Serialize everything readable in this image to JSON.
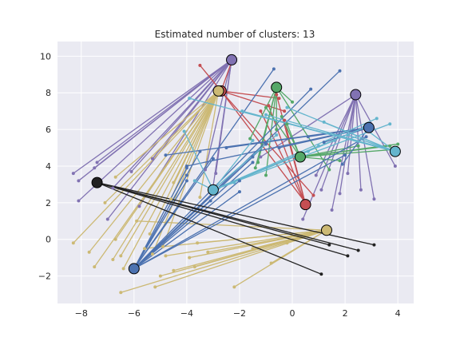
{
  "chart_data": {
    "type": "scatter",
    "title": "Estimated number of clusters: 13",
    "xlabel": "",
    "ylabel": "",
    "xlim": [
      -8.9,
      4.6
    ],
    "ylim": [
      -3.5,
      10.8
    ],
    "x_ticks": [
      -8,
      -6,
      -4,
      -2,
      0,
      2,
      4
    ],
    "y_ticks": [
      -2,
      0,
      2,
      4,
      6,
      8,
      10
    ],
    "x_tick_labels": [
      "−8",
      "−6",
      "−4",
      "−2",
      "0",
      "2",
      "4"
    ],
    "y_tick_labels": [
      "−2",
      "0",
      "2",
      "4",
      "6",
      "8",
      "10"
    ],
    "grid": true,
    "background": "#eaeaf2",
    "clusters": [
      {
        "color": "#8172b2",
        "center": [
          -2.3,
          9.8
        ],
        "points": [
          [
            -8.3,
            3.6
          ],
          [
            -8.1,
            3.2
          ],
          [
            -8.1,
            2.1
          ],
          [
            -7.4,
            4.2
          ],
          [
            -7.5,
            3.9
          ],
          [
            -7.0,
            1.1
          ],
          [
            -6.8,
            2.8
          ],
          [
            -6.1,
            3.7
          ],
          [
            -5.8,
            1.8
          ],
          [
            -3.3,
            3.8
          ],
          [
            -3.0,
            2.9
          ],
          [
            -2.9,
            3.6
          ],
          [
            -5.3,
            4.4
          ]
        ]
      },
      {
        "color": "#8172b2",
        "center": [
          2.4,
          7.9
        ],
        "points": [
          [
            0.4,
            1.1
          ],
          [
            1.1,
            2.7
          ],
          [
            1.5,
            1.6
          ],
          [
            1.8,
            2.5
          ],
          [
            2.1,
            3.6
          ],
          [
            2.6,
            2.7
          ],
          [
            3.1,
            2.2
          ],
          [
            3.9,
            4.0
          ],
          [
            0.9,
            3.5
          ],
          [
            -1.2,
            4.5
          ]
        ]
      },
      {
        "color": "#c44e52",
        "center": [
          -2.7,
          8.1
        ],
        "points": [
          [
            -3.5,
            9.5
          ],
          [
            -2.3,
            9.7
          ],
          [
            -0.3,
            7.0
          ],
          [
            -0.5,
            7.7
          ],
          [
            0.5,
            2.0
          ],
          [
            0.8,
            2.4
          ]
        ]
      },
      {
        "color": "#c44e52",
        "center": [
          0.5,
          1.9
        ],
        "points": [
          [
            -0.9,
            7.3
          ],
          [
            -0.6,
            7.9
          ],
          [
            -1.2,
            7.0
          ],
          [
            -0.3,
            6.5
          ]
        ]
      },
      {
        "color": "#55a868",
        "center": [
          -0.6,
          8.3
        ],
        "points": [
          [
            -1.6,
            5.5
          ],
          [
            -1.3,
            4.2
          ],
          [
            -1.4,
            3.9
          ],
          [
            -1.0,
            3.5
          ],
          [
            0.0,
            7.5
          ],
          [
            -0.6,
            6.0
          ],
          [
            1.4,
            3.8
          ]
        ]
      },
      {
        "color": "#55a868",
        "center": [
          0.3,
          4.5
        ],
        "points": [
          [
            -1.0,
            7.2
          ],
          [
            -0.4,
            6.7
          ],
          [
            -0.2,
            6.3
          ],
          [
            4.0,
            5.2
          ],
          [
            3.8,
            4.9
          ],
          [
            3.7,
            5.1
          ],
          [
            2.5,
            5.1
          ],
          [
            1.8,
            4.3
          ]
        ]
      },
      {
        "color": "#ccb974",
        "center": [
          -2.8,
          8.1
        ],
        "points": [
          [
            -8.3,
            -0.2
          ],
          [
            -7.7,
            -0.7
          ],
          [
            -7.5,
            -1.5
          ],
          [
            -6.7,
            0.0
          ],
          [
            -6.5,
            -0.9
          ],
          [
            -6.8,
            -1.1
          ],
          [
            -6.4,
            -1.6
          ],
          [
            -5.3,
            -0.8
          ],
          [
            -4.9,
            -0.4
          ],
          [
            -7.1,
            2.0
          ],
          [
            -6.7,
            3.4
          ],
          [
            -4.6,
            2.2
          ],
          [
            -4.5,
            3.1
          ],
          [
            -3.5,
            2.3
          ],
          [
            -5.4,
            0.3
          ]
        ]
      },
      {
        "color": "#ccb974",
        "center": [
          1.3,
          0.5
        ],
        "points": [
          [
            -6.5,
            -2.9
          ],
          [
            -5.2,
            -2.6
          ],
          [
            -5.0,
            -2.0
          ],
          [
            -4.5,
            -1.7
          ],
          [
            -3.9,
            -1.0
          ],
          [
            -3.2,
            -0.7
          ],
          [
            -2.2,
            -2.6
          ],
          [
            -3.7,
            -1.5
          ],
          [
            -4.8,
            -0.9
          ],
          [
            -5.6,
            -0.5
          ],
          [
            -3.6,
            -0.2
          ],
          [
            -0.8,
            -1.3
          ],
          [
            -1.5,
            -0.5
          ],
          [
            -0.2,
            -0.2
          ],
          [
            -5.9,
            1.0
          ]
        ]
      },
      {
        "color": "#4c72b0",
        "center": [
          -6.0,
          -1.6
        ],
        "points": [
          [
            -4.0,
            3.5
          ],
          [
            -4.0,
            3.9
          ],
          [
            -4.0,
            3.2
          ],
          [
            -3.5,
            4.8
          ],
          [
            -3.0,
            4.4
          ],
          [
            -2.0,
            3.2
          ],
          [
            -3.1,
            2.1
          ],
          [
            -2.0,
            2.6
          ],
          [
            -1.5,
            4.2
          ],
          [
            0.7,
            8.2
          ],
          [
            1.8,
            9.2
          ],
          [
            -0.7,
            9.3
          ],
          [
            2.0,
            4.6
          ],
          [
            2.8,
            5.6
          ],
          [
            -1.0,
            5.2
          ],
          [
            -1.5,
            4.5
          ]
        ]
      },
      {
        "color": "#4c72b0",
        "center": [
          2.9,
          6.1
        ],
        "points": [
          [
            -4.8,
            4.6
          ],
          [
            -4.0,
            4.0
          ],
          [
            -2.5,
            5.0
          ],
          [
            -0.5,
            5.0
          ],
          [
            0.6,
            5.6
          ],
          [
            1.2,
            5.3
          ],
          [
            1.9,
            4.1
          ]
        ]
      },
      {
        "color": "#64b5cd",
        "center": [
          -3.0,
          2.7
        ],
        "points": [
          [
            -4.1,
            5.9
          ],
          [
            -3.7,
            3.2
          ],
          [
            -2.2,
            3.1
          ],
          [
            -1.5,
            5.4
          ],
          [
            -0.6,
            5.7
          ],
          [
            0.6,
            4.8
          ],
          [
            1.0,
            5.1
          ],
          [
            1.6,
            5.4
          ],
          [
            3.2,
            6.6
          ],
          [
            3.7,
            6.3
          ],
          [
            2.9,
            6.2
          ]
        ]
      },
      {
        "color": "#64b5cd",
        "center": [
          3.9,
          4.8
        ],
        "points": [
          [
            -3.9,
            7.7
          ],
          [
            -1.9,
            7.0
          ],
          [
            -1.0,
            6.8
          ],
          [
            -0.2,
            7.2
          ],
          [
            1.2,
            6.4
          ],
          [
            2.7,
            6.1
          ],
          [
            2.1,
            5.7
          ]
        ]
      },
      {
        "color": "#222222",
        "center": [
          -7.4,
          3.1
        ],
        "points": [
          [
            1.1,
            -1.9
          ],
          [
            2.1,
            -0.9
          ],
          [
            2.5,
            -0.6
          ],
          [
            3.1,
            -0.3
          ],
          [
            1.4,
            -0.3
          ]
        ]
      }
    ]
  }
}
